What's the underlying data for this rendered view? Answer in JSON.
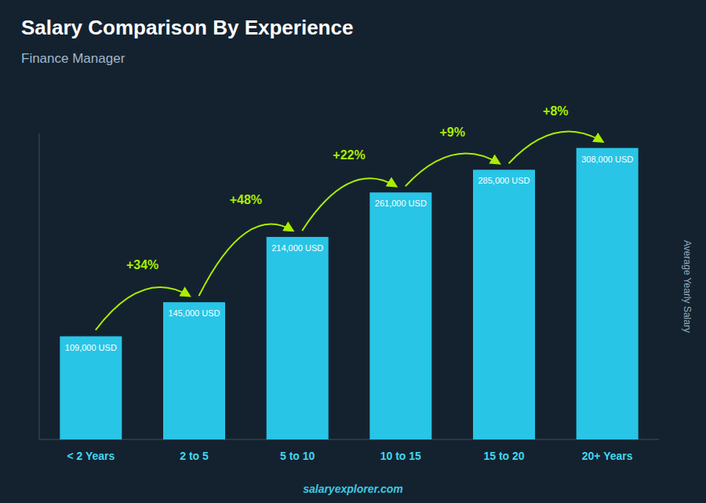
{
  "chart_data": {
    "type": "bar",
    "title": "Salary Comparison By Experience",
    "subtitle": "Finance Manager",
    "ylabel": "Average Yearly Salary",
    "source": "salaryexplorer.com",
    "categories": [
      "< 2 Years",
      "2 to 5",
      "5 to 10",
      "10 to 15",
      "15 to 20",
      "20+ Years"
    ],
    "values": [
      109000,
      145000,
      214000,
      261000,
      285000,
      308000
    ],
    "value_labels": [
      "109,000 USD",
      "145,000 USD",
      "214,000 USD",
      "261,000 USD",
      "285,000 USD",
      "308,000 USD"
    ],
    "annotations": [
      "+34%",
      "+48%",
      "+22%",
      "+9%",
      "+8%"
    ],
    "color": "#29c5e6",
    "ylim": [
      0,
      323400
    ],
    "data_labels": true,
    "tick_labels": "x",
    "grid": false
  }
}
